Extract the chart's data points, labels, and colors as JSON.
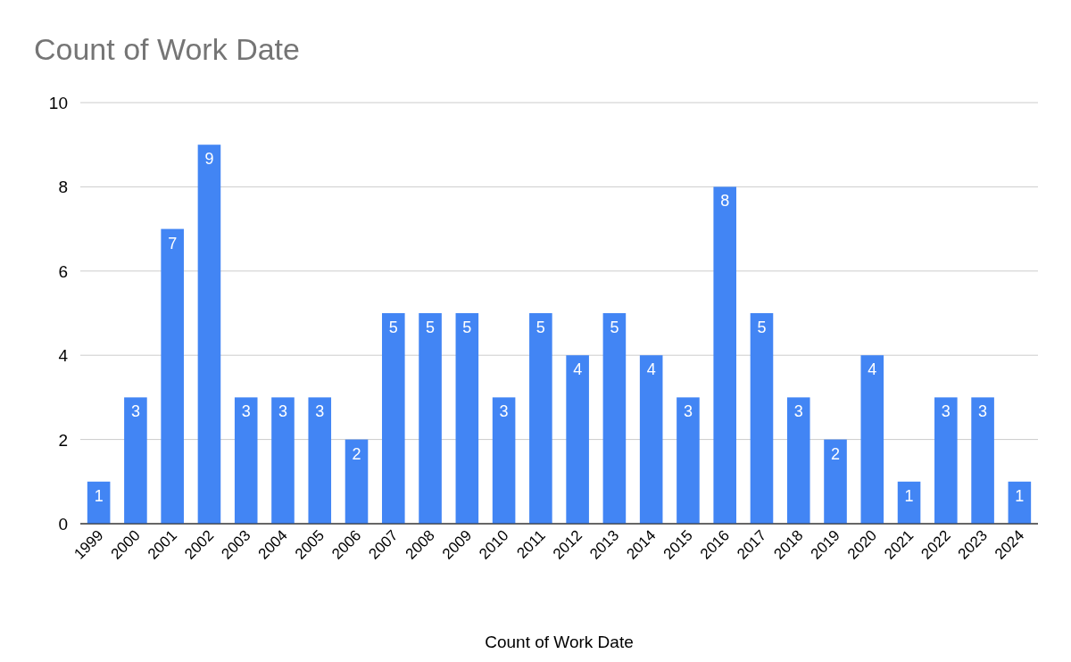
{
  "chart_data": {
    "type": "bar",
    "title": "Count of Work Date",
    "xlabel": "Count of Work Date",
    "categories": [
      "1999",
      "2000",
      "2001",
      "2002",
      "2003",
      "2004",
      "2005",
      "2006",
      "2007",
      "2008",
      "2009",
      "2010",
      "2011",
      "2012",
      "2013",
      "2014",
      "2015",
      "2016",
      "2017",
      "2018",
      "2019",
      "2020",
      "2021",
      "2022",
      "2023",
      "2024"
    ],
    "values": [
      1,
      3,
      7,
      9,
      3,
      3,
      3,
      2,
      5,
      5,
      5,
      3,
      5,
      4,
      5,
      4,
      3,
      8,
      5,
      3,
      2,
      4,
      1,
      3,
      3,
      1
    ],
    "color": "#4285f4",
    "ylim": [
      0,
      10
    ],
    "yticks": [
      0,
      2,
      4,
      6,
      8,
      10
    ],
    "grid": "y",
    "data_labels": true
  }
}
